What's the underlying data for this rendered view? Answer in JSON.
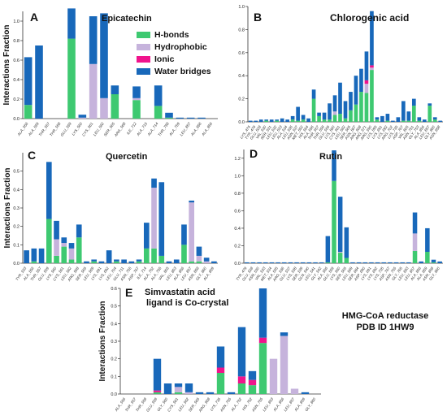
{
  "colors": {
    "hbond": "#3ec971",
    "hydrophobic": "#c6b3dc",
    "ionic": "#f0148c",
    "water": "#1868ba",
    "axis": "#333333"
  },
  "shared": {
    "ylabel": "Interactions Fraction",
    "legend": [
      "H-bonds",
      "Hydrophobic",
      "Ionic",
      "Water bridges"
    ],
    "series_names": [
      "H-bonds",
      "Hydrophobic",
      "Ionic",
      "Water bridges"
    ]
  },
  "annotation": {
    "line1": "HMG-CoA reductase",
    "line2": "PDB ID  1HW9"
  },
  "chart_data": [
    {
      "type": "bar",
      "stacked": true,
      "panel_letter": "A",
      "title": "Epicatechin",
      "ylabel": "Interactions Fraction",
      "ylim": [
        0,
        1.1
      ],
      "yticks": [
        0,
        0.2,
        0.4,
        0.6,
        0.8,
        1.0
      ],
      "ytick_labels": [
        "0.0",
        "0.2",
        "0.4",
        "0.6",
        "0.8",
        "1.0"
      ],
      "legend_position": "center",
      "categories": [
        "ALA_556",
        "ALA_559",
        "THR_557",
        "THR_558",
        "GLU_559",
        "LYS_560",
        "CYS_561",
        "LEU_562",
        "SER_565",
        "ARG_568",
        "ILE_712",
        "ALA_715",
        "ALA_714",
        "THR_758",
        "ALA_759",
        "LEU_857",
        "ALA_856",
        "ALA_856"
      ],
      "series": [
        {
          "name": "H-bonds",
          "values": [
            0.14,
            0.0,
            0,
            0,
            0.82,
            0,
            0,
            0,
            0.25,
            0,
            0.19,
            0,
            0.13,
            0.01,
            0,
            0,
            0,
            0
          ]
        },
        {
          "name": "Hydrophobic",
          "values": [
            0,
            0,
            0,
            0,
            0,
            0.01,
            0.56,
            0.21,
            0,
            0,
            0.02,
            0,
            0,
            0,
            0,
            0,
            0,
            0
          ]
        },
        {
          "name": "Ionic",
          "values": [
            0,
            0,
            0,
            0,
            0,
            0,
            0,
            0,
            0,
            0,
            0,
            0,
            0,
            0,
            0,
            0,
            0,
            0
          ]
        },
        {
          "name": "Water bridges",
          "values": [
            0.49,
            0.75,
            0,
            0,
            0.31,
            0.03,
            0.49,
            0.87,
            0.09,
            0,
            0.12,
            0,
            0.21,
            0.05,
            0.01,
            0.01,
            0.01,
            0
          ]
        }
      ]
    },
    {
      "type": "bar",
      "stacked": true,
      "panel_letter": "B",
      "title": "Chlorogenic acid",
      "ylabel": "",
      "ylim": [
        0,
        1.0
      ],
      "yticks": [
        0,
        0.2,
        0.4,
        0.6,
        0.8,
        1.0
      ],
      "ytick_labels": [
        "0.0",
        "0.2",
        "0.4",
        "0.6",
        "0.8",
        "1.0"
      ],
      "categories": [
        "LYS_474",
        "TYR_479",
        "GLU_528",
        "VAL_530",
        "SER_531",
        "LEU_532",
        "LEU_533",
        "ALA_534",
        "LEU_536",
        "ASN_537",
        "MET_552",
        "HIS_554",
        "ALA_556",
        "THR_557",
        "THR_558",
        "GLU_559",
        "LYS_560",
        "CYS_561",
        "LEU_562",
        "SER_565",
        "ASN_567",
        "ARG_568",
        "ARG_571",
        "ARG_590",
        "LYS_595",
        "LYS_691",
        "LYS_692",
        "ARG_702",
        "LYS_735",
        "ASP_767",
        "VAL_805",
        "ASN_751",
        "GLY_753",
        "ALA_856",
        "LEU_857",
        "GLY_860",
        "ASN_858"
      ],
      "series": [
        {
          "name": "H-bonds",
          "values": [
            0,
            0,
            0,
            0.01,
            0,
            0.01,
            0,
            0,
            0.02,
            0.01,
            0.02,
            0,
            0.2,
            0.05,
            0.02,
            0.02,
            0.06,
            0.07,
            0.03,
            0.1,
            0.15,
            0.26,
            0.25,
            0.45,
            0.02,
            0,
            0.01,
            0,
            0,
            0.01,
            0.01,
            0.14,
            0.01,
            0,
            0.14,
            0.02,
            0
          ]
        },
        {
          "name": "Hydrophobic",
          "values": [
            0,
            0,
            0,
            0,
            0,
            0,
            0,
            0,
            0,
            0,
            0,
            0,
            0,
            0,
            0,
            0,
            0.03,
            0,
            0,
            0,
            0,
            0,
            0.08,
            0.02,
            0,
            0,
            0,
            0,
            0,
            0,
            0,
            0,
            0,
            0,
            0,
            0,
            0
          ]
        },
        {
          "name": "Ionic",
          "values": [
            0,
            0,
            0,
            0,
            0,
            0,
            0,
            0,
            0,
            0,
            0,
            0,
            0,
            0,
            0,
            0,
            0,
            0,
            0,
            0,
            0,
            0,
            0.03,
            0.02,
            0,
            0,
            0,
            0,
            0,
            0,
            0,
            0,
            0,
            0,
            0,
            0,
            0
          ]
        },
        {
          "name": "Water bridges",
          "values": [
            0.01,
            0.01,
            0.02,
            0.01,
            0.02,
            0.01,
            0.03,
            0.02,
            0.03,
            0.12,
            0.04,
            0.03,
            0.08,
            0.03,
            0.06,
            0.14,
            0.14,
            0.27,
            0.15,
            0.16,
            0.25,
            0.2,
            0.25,
            0.47,
            0.02,
            0.05,
            0.06,
            0.01,
            0.04,
            0.17,
            0.08,
            0.06,
            0.03,
            0.02,
            0.02,
            0.02,
            0.01
          ]
        }
      ]
    },
    {
      "type": "bar",
      "stacked": true,
      "panel_letter": "C",
      "title": "Quercetin",
      "ylabel": "Interactions Fraction",
      "ylim": [
        0,
        0.6
      ],
      "yticks": [
        0,
        0.1,
        0.2,
        0.3,
        0.4,
        0.5
      ],
      "ytick_labels": [
        "0.0",
        "0.1",
        "0.2",
        "0.3",
        "0.4",
        "0.5"
      ],
      "categories": [
        "TYR_533",
        "ALA_556",
        "THR_557",
        "GLU_559",
        "LYS_560",
        "CYS_561",
        "LEU_562",
        "ARG_568",
        "SER_565",
        "LEU_569",
        "LYS_691",
        "LYS_692",
        "LEU_704",
        "GLU_711",
        "ASN_755",
        "ASP_767",
        "ILE_714",
        "ALA_752",
        "ALA_755",
        "VAL_805",
        "LEU_853",
        "ALA_856",
        "LEU_857",
        "ASN_858",
        "GLY_860",
        "ALA_859"
      ],
      "series": [
        {
          "name": "H-bonds",
          "values": [
            0,
            0.01,
            0,
            0.24,
            0.04,
            0.09,
            0.02,
            0.14,
            0,
            0.01,
            0,
            0,
            0.01,
            0,
            0,
            0.01,
            0.08,
            0.08,
            0.04,
            0,
            0,
            0.1,
            0.01,
            0.01,
            0,
            0
          ]
        },
        {
          "name": "Hydrophobic",
          "values": [
            0,
            0,
            0,
            0,
            0.09,
            0.02,
            0.06,
            0,
            0,
            0,
            0,
            0,
            0,
            0,
            0,
            0,
            0,
            0.33,
            0,
            0,
            0,
            0,
            0.32,
            0.03,
            0.01,
            0
          ]
        },
        {
          "name": "Ionic",
          "values": [
            0,
            0,
            0,
            0,
            0,
            0,
            0,
            0,
            0,
            0,
            0,
            0,
            0,
            0,
            0,
            0,
            0,
            0,
            0,
            0,
            0,
            0,
            0,
            0,
            0,
            0
          ]
        },
        {
          "name": "Water bridges",
          "values": [
            0.07,
            0.07,
            0.08,
            0.31,
            0.1,
            0.03,
            0.03,
            0.07,
            0.01,
            0.01,
            0.01,
            0.07,
            0.01,
            0.02,
            0.01,
            0.01,
            0.14,
            0.05,
            0.4,
            0.01,
            0.02,
            0.11,
            0.01,
            0.05,
            0.02,
            0.01
          ]
        }
      ]
    },
    {
      "type": "bar",
      "stacked": true,
      "panel_letter": "D",
      "title": "Rutin",
      "ylabel": "",
      "ylim": [
        0,
        1.3
      ],
      "yticks": [
        0,
        0.2,
        0.4,
        0.6,
        0.8,
        1.0,
        1.2
      ],
      "ytick_labels": [
        "0.0",
        "0.2",
        "0.4",
        "0.6",
        "0.8",
        "1.0",
        "1.2"
      ],
      "categories": [
        "TYR_479",
        "GLU_528",
        "ASN_530",
        "VAL_533",
        "MET_534",
        "ALA_535",
        "ARG_536",
        "GLU_537",
        "LYS_538",
        "SER_539",
        "GLN_540",
        "LEU_541",
        "GLY_542",
        "ALA_556",
        "GLU_559",
        "LYS_560",
        "SER_565",
        "LEU_569",
        "SER_684",
        "ASP_690",
        "LYS_691",
        "LYS_692",
        "LYS_735",
        "ASP_767",
        "ASN_755",
        "GLY_765",
        "LEU_853",
        "LEU_857",
        "ALA_856",
        "ALA_859",
        "ASN_858",
        "GLY_860"
      ],
      "series": [
        {
          "name": "H-bonds",
          "values": [
            0,
            0,
            0,
            0,
            0,
            0,
            0,
            0,
            0,
            0,
            0,
            0,
            0,
            0.01,
            0.94,
            0.12,
            0.06,
            0,
            0,
            0,
            0,
            0,
            0,
            0,
            0,
            0,
            0,
            0.14,
            0,
            0.13,
            0.01,
            0
          ]
        },
        {
          "name": "Hydrophobic",
          "values": [
            0,
            0,
            0,
            0,
            0,
            0,
            0,
            0,
            0,
            0,
            0,
            0,
            0,
            0,
            0,
            0.01,
            0,
            0,
            0,
            0,
            0,
            0,
            0,
            0,
            0,
            0,
            0,
            0.2,
            0,
            0,
            0,
            0
          ]
        },
        {
          "name": "Ionic",
          "values": [
            0,
            0,
            0,
            0,
            0,
            0,
            0,
            0,
            0,
            0,
            0,
            0,
            0,
            0,
            0,
            0,
            0,
            0,
            0,
            0,
            0,
            0,
            0,
            0,
            0,
            0,
            0,
            0,
            0,
            0,
            0,
            0
          ]
        },
        {
          "name": "Water bridges",
          "values": [
            0.01,
            0.01,
            0.01,
            0.01,
            0.01,
            0.01,
            0.01,
            0.01,
            0.01,
            0.01,
            0.01,
            0.01,
            0.01,
            0.3,
            0.35,
            0.63,
            0.35,
            0.01,
            0.01,
            0.01,
            0.01,
            0.01,
            0.01,
            0.01,
            0.01,
            0.01,
            0.01,
            0.24,
            0.02,
            0.27,
            0.03,
            0.02
          ]
        }
      ]
    },
    {
      "type": "bar",
      "stacked": true,
      "panel_letter": "E",
      "title": "Simvastatin acid",
      "subtitle": "ligand is Co-crystal",
      "ylabel": "Interactions Fraction",
      "ylim": [
        0,
        0.6
      ],
      "yticks": [
        0,
        0.1,
        0.2,
        0.3,
        0.4,
        0.5,
        0.6
      ],
      "ytick_labels": [
        "0.0",
        "0.1",
        "0.2",
        "0.3",
        "0.4",
        "0.5",
        "0.6"
      ],
      "categories": [
        "ALA_556",
        "THR_557",
        "THR_558",
        "GLU_559",
        "GLY_560",
        "CYS_561",
        "LEU_562",
        "SER_565",
        "ARG_568",
        "LYS_735",
        "ASN_755",
        "ALA_752",
        "HIS_752",
        "ASN_755",
        "LEU_853",
        "ALA_856",
        "LEU_857",
        "ALA_859",
        "GLY_860"
      ],
      "series": [
        {
          "name": "H-bonds",
          "values": [
            0,
            0,
            0,
            0.01,
            0,
            0.01,
            0,
            0,
            0,
            0.12,
            0,
            0.06,
            0.05,
            0.29,
            0,
            0,
            0,
            0,
            0
          ]
        },
        {
          "name": "Hydrophobic",
          "values": [
            0,
            0,
            0,
            0,
            0,
            0.03,
            0.01,
            0,
            0,
            0,
            0,
            0,
            0,
            0,
            0.2,
            0.33,
            0.03,
            0,
            0
          ]
        },
        {
          "name": "Ionic",
          "values": [
            0,
            0,
            0,
            0.01,
            0,
            0,
            0,
            0,
            0,
            0.03,
            0,
            0.04,
            0.03,
            0.03,
            0,
            0,
            0,
            0,
            0
          ]
        },
        {
          "name": "Water bridges",
          "values": [
            0,
            0,
            0,
            0.18,
            0.06,
            0.02,
            0.05,
            0.01,
            0.01,
            0.12,
            0.01,
            0.28,
            0.05,
            0.28,
            0,
            0.02,
            0,
            0.01,
            0
          ]
        }
      ]
    }
  ]
}
